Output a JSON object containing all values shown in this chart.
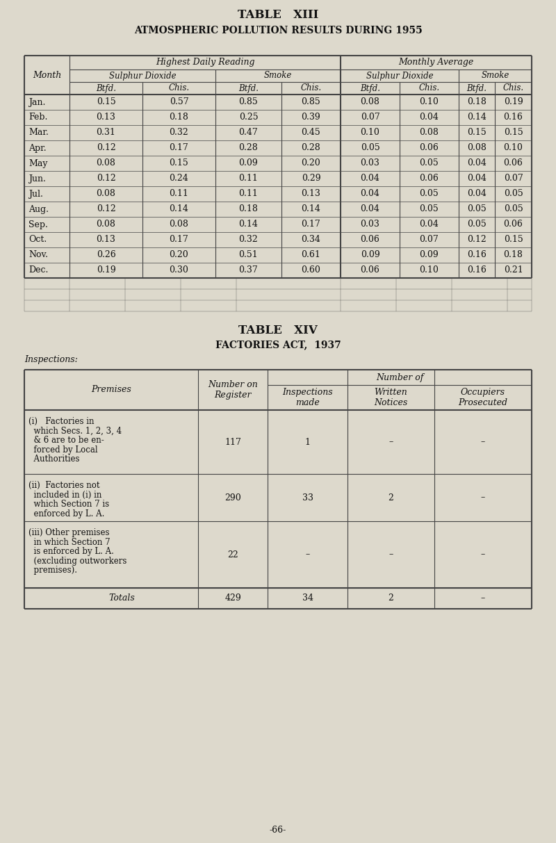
{
  "bg_color": "#ddd9cc",
  "title1": "TABLE   XIII",
  "title2": "ATMOSPHERIC POLLUTION RESULTS DURING 1955",
  "table1_months": [
    "Jan.",
    "Feb.",
    "Mar.",
    "Apr.",
    "May",
    "Jun.",
    "Jul.",
    "Aug.",
    "Sep.",
    "Oct.",
    "Nov.",
    "Dec."
  ],
  "table1_data": [
    [
      0.15,
      0.57,
      0.85,
      0.85,
      0.08,
      0.1,
      0.18,
      0.19
    ],
    [
      0.13,
      0.18,
      0.25,
      0.39,
      0.07,
      0.04,
      0.14,
      0.16
    ],
    [
      0.31,
      0.32,
      0.47,
      0.45,
      0.1,
      0.08,
      0.15,
      0.15
    ],
    [
      0.12,
      0.17,
      0.28,
      0.28,
      0.05,
      0.06,
      0.08,
      0.1
    ],
    [
      0.08,
      0.15,
      0.09,
      0.2,
      0.03,
      0.05,
      0.04,
      0.06
    ],
    [
      0.12,
      0.24,
      0.11,
      0.29,
      0.04,
      0.06,
      0.04,
      0.07
    ],
    [
      0.08,
      0.11,
      0.11,
      0.13,
      0.04,
      0.05,
      0.04,
      0.05
    ],
    [
      0.12,
      0.14,
      0.18,
      0.14,
      0.04,
      0.05,
      0.05,
      0.05
    ],
    [
      0.08,
      0.08,
      0.14,
      0.17,
      0.03,
      0.04,
      0.05,
      0.06
    ],
    [
      0.13,
      0.17,
      0.32,
      0.34,
      0.06,
      0.07,
      0.12,
      0.15
    ],
    [
      0.26,
      0.2,
      0.51,
      0.61,
      0.09,
      0.09,
      0.16,
      0.18
    ],
    [
      0.19,
      0.3,
      0.37,
      0.6,
      0.06,
      0.1,
      0.16,
      0.21
    ]
  ],
  "title3": "TABLE   XIV",
  "title4": "FACTORIES ACT,  1937",
  "inspections_label": "Inspections:",
  "table2_num_of_header": "Number of",
  "table2_rows": [
    {
      "premise_lines": [
        "(i)   Factories in",
        "  which Secs. 1, 2, 3, 4",
        "  & 6 are to be en-",
        "  forced by Local",
        "  Authorities"
      ],
      "register": "117",
      "inspections": "1",
      "notices": "–",
      "prosecuted": "–"
    },
    {
      "premise_lines": [
        "(ii)  Factories not",
        "  included in (i) in",
        "  which Section 7 is",
        "  enforced by L. A."
      ],
      "register": "290",
      "inspections": "33",
      "notices": "2",
      "prosecuted": "–"
    },
    {
      "premise_lines": [
        "(iii) Other premises",
        "  in which Section 7",
        "  is enforced by L. A.",
        "  (excluding outworkers",
        "  premises)."
      ],
      "register": "22",
      "inspections": "–",
      "notices": "–",
      "prosecuted": "–"
    }
  ],
  "table2_totals": [
    "Totals",
    "429",
    "34",
    "2",
    "–"
  ],
  "page_number": "-66-",
  "text_color": "#111111",
  "line_color": "#444444"
}
